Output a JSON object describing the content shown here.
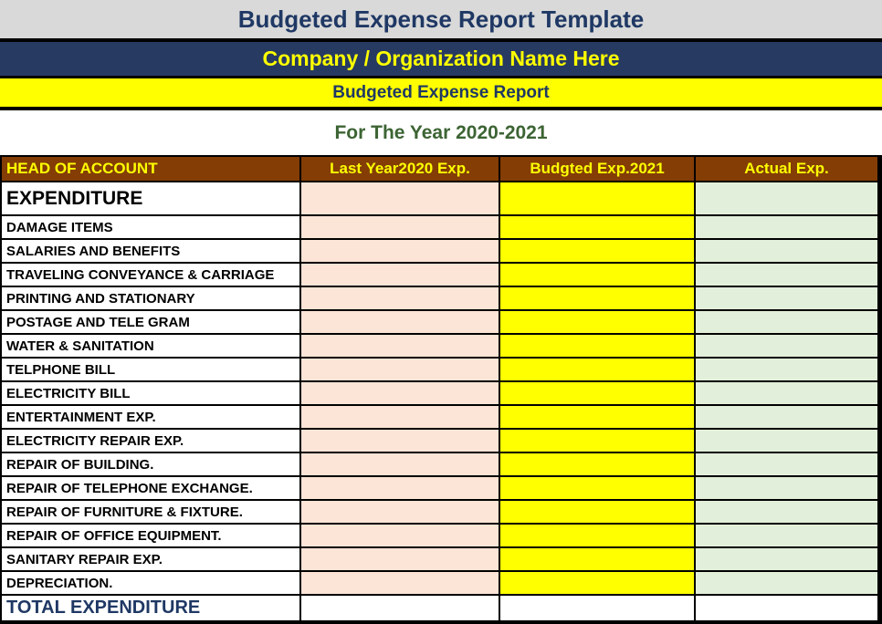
{
  "banner": {
    "title": "Budgeted Expense Report Template",
    "org_name": "Company / Organization Name Here",
    "report_title": "Budgeted Expense Report",
    "period": "For The Year 2020-2021"
  },
  "table": {
    "columns": {
      "head": "HEAD OF ACCOUNT",
      "last_year": "Last Year2020 Exp.",
      "budgeted": "Budgted Exp.2021",
      "actual": "Actual Exp."
    },
    "section": {
      "label": "EXPENDITURE",
      "last_year": "",
      "budgeted": "",
      "actual": ""
    },
    "rows": [
      {
        "label": "DAMAGE ITEMS",
        "last_year": "",
        "budgeted": "",
        "actual": ""
      },
      {
        "label": "SALARIES AND BENEFITS",
        "last_year": "",
        "budgeted": "",
        "actual": ""
      },
      {
        "label": "TRAVELING CONVEYANCE & CARRIAGE",
        "last_year": "",
        "budgeted": "",
        "actual": ""
      },
      {
        "label": "PRINTING AND STATIONARY",
        "last_year": "",
        "budgeted": "",
        "actual": ""
      },
      {
        "label": "POSTAGE AND TELE GRAM",
        "last_year": "",
        "budgeted": "",
        "actual": ""
      },
      {
        "label": "WATER & SANITATION",
        "last_year": "",
        "budgeted": "",
        "actual": ""
      },
      {
        "label": "TELPHONE BILL",
        "last_year": "",
        "budgeted": "",
        "actual": ""
      },
      {
        "label": "ELECTRICITY BILL",
        "last_year": "",
        "budgeted": "",
        "actual": ""
      },
      {
        "label": "ENTERTAINMENT EXP.",
        "last_year": "",
        "budgeted": "",
        "actual": ""
      },
      {
        "label": "ELECTRICITY REPAIR EXP.",
        "last_year": "",
        "budgeted": "",
        "actual": ""
      },
      {
        "label": "REPAIR OF BUILDING.",
        "last_year": "",
        "budgeted": "",
        "actual": ""
      },
      {
        "label": "REPAIR OF TELEPHONE EXCHANGE.",
        "last_year": "",
        "budgeted": "",
        "actual": ""
      },
      {
        "label": "REPAIR OF FURNITURE & FIXTURE.",
        "last_year": "",
        "budgeted": "",
        "actual": ""
      },
      {
        "label": "REPAIR OF OFFICE EQUIPMENT.",
        "last_year": "",
        "budgeted": "",
        "actual": ""
      },
      {
        "label": "SANITARY REPAIR EXP.",
        "last_year": "",
        "budgeted": "",
        "actual": ""
      },
      {
        "label": "DEPRECIATION.",
        "last_year": "",
        "budgeted": "",
        "actual": ""
      }
    ],
    "total": {
      "label": "TOTAL EXPENDITURE",
      "last_year": "",
      "budgeted": "",
      "actual": ""
    }
  },
  "colors": {
    "title_bar_bg": "#d9d9d9",
    "title_text": "#1f3864",
    "org_bar_bg": "#273a62",
    "org_text": "#ffff00",
    "report_bar_bg": "#ffff00",
    "report_text": "#1f3864",
    "period_text": "#3c6433",
    "header_bg": "#833d05",
    "header_text": "#ffff00",
    "last_year_col_bg": "#fce4d6",
    "budgeted_col_bg": "#ffff00",
    "actual_col_bg": "#e2efda",
    "total_text": "#1f3864",
    "border": "#000000"
  }
}
